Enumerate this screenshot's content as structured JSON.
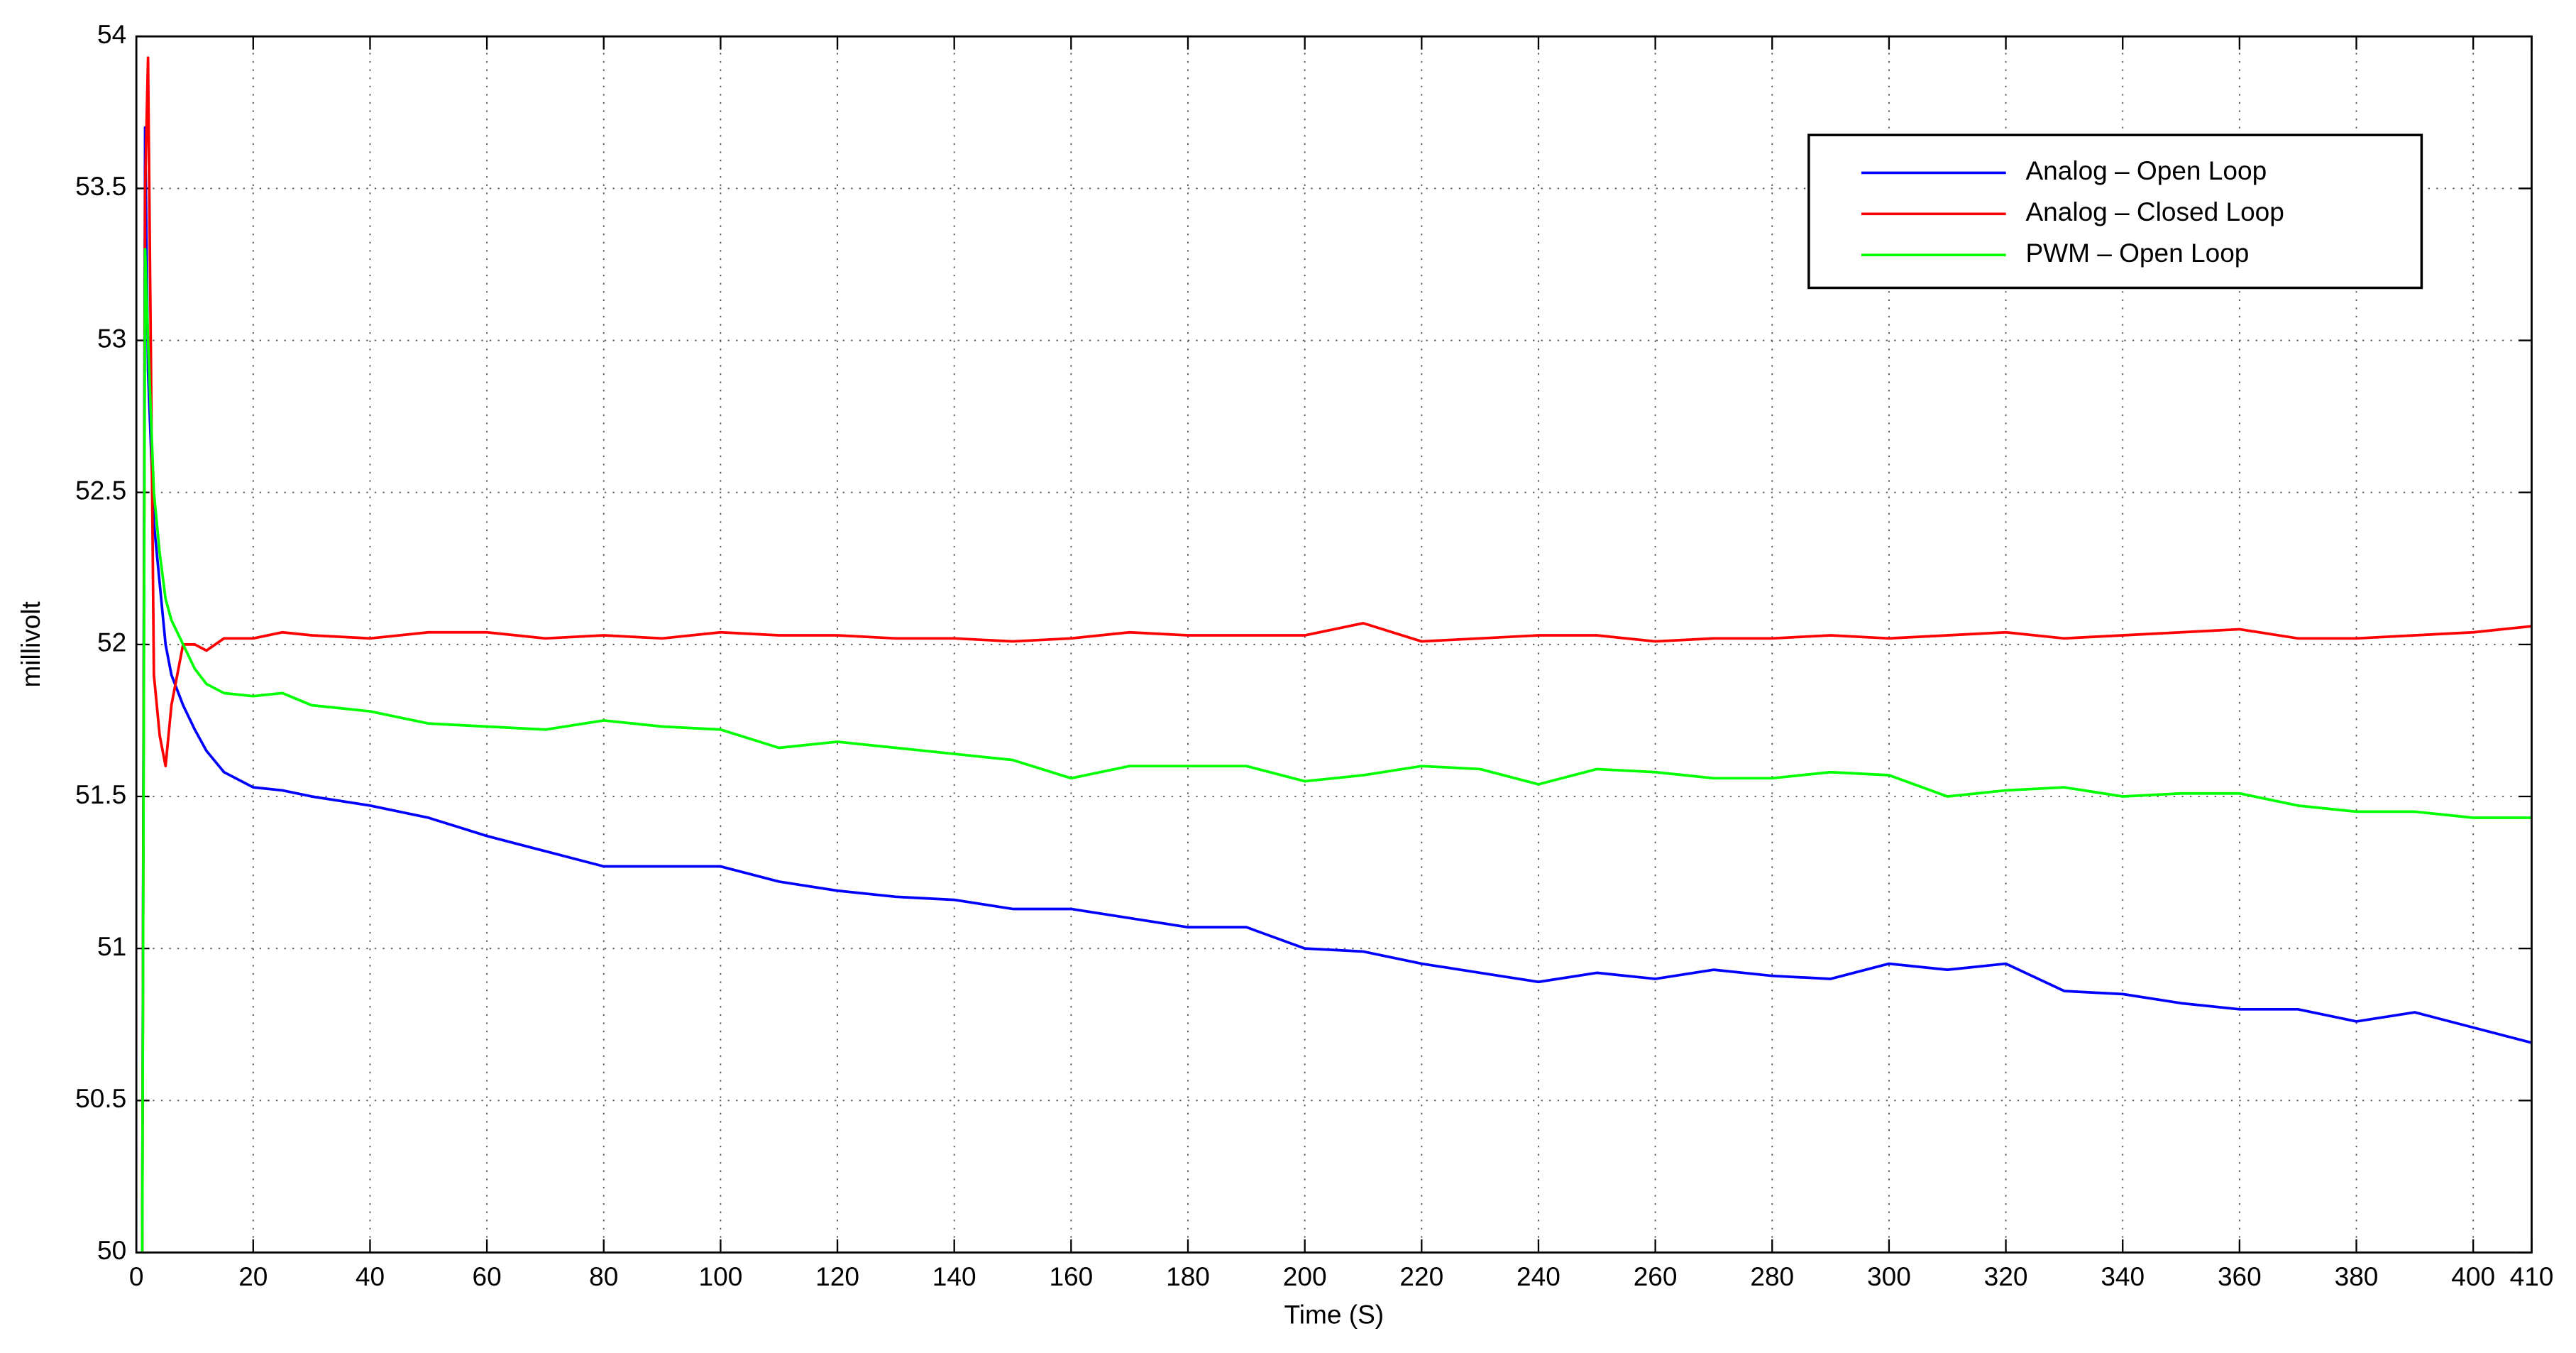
{
  "chart_data": {
    "type": "line",
    "x_label": "Time (S)",
    "y_label": "millivolt",
    "x": [
      1,
      1.5,
      2,
      3,
      4,
      5,
      6,
      8,
      10,
      12,
      15,
      20,
      25,
      30,
      40,
      50,
      60,
      70,
      80,
      90,
      100,
      110,
      120,
      130,
      140,
      150,
      160,
      170,
      180,
      190,
      200,
      210,
      220,
      230,
      240,
      250,
      260,
      270,
      280,
      290,
      300,
      310,
      320,
      330,
      340,
      350,
      360,
      370,
      380,
      390,
      400,
      410
    ],
    "series": [
      {
        "name": "Analog – Open Loop",
        "color": "#0000ff",
        "values": [
          50,
          53.7,
          52.9,
          52.4,
          52.2,
          52.0,
          51.9,
          51.8,
          51.72,
          51.65,
          51.58,
          51.53,
          51.52,
          51.5,
          51.47,
          51.43,
          51.37,
          51.32,
          51.27,
          51.27,
          51.27,
          51.22,
          51.19,
          51.17,
          51.16,
          51.13,
          51.13,
          51.1,
          51.07,
          51.07,
          51.0,
          50.99,
          50.95,
          50.92,
          50.89,
          50.92,
          50.9,
          50.93,
          50.91,
          50.9,
          50.95,
          50.93,
          50.95,
          50.86,
          50.85,
          50.82,
          50.8,
          50.8,
          50.76,
          50.79,
          50.74,
          50.69
        ]
      },
      {
        "name": "Analog – Closed Loop",
        "color": "#ff0000",
        "values": [
          50,
          53.5,
          53.93,
          51.9,
          51.7,
          51.6,
          51.8,
          52.0,
          52.0,
          51.98,
          52.02,
          52.02,
          52.04,
          52.03,
          52.02,
          52.04,
          52.04,
          52.02,
          52.03,
          52.02,
          52.04,
          52.03,
          52.03,
          52.02,
          52.02,
          52.01,
          52.02,
          52.04,
          52.03,
          52.03,
          52.03,
          52.07,
          52.01,
          52.02,
          52.03,
          52.03,
          52.01,
          52.02,
          52.02,
          52.03,
          52.02,
          52.03,
          52.04,
          52.02,
          52.03,
          52.04,
          52.05,
          52.02,
          52.02,
          52.03,
          52.04,
          52.06
        ]
      },
      {
        "name": "PWM – Open Loop",
        "color": "#00ff00",
        "values": [
          50,
          53.3,
          53.0,
          52.5,
          52.3,
          52.15,
          52.08,
          52.0,
          51.92,
          51.87,
          51.84,
          51.83,
          51.84,
          51.8,
          51.78,
          51.74,
          51.73,
          51.72,
          51.75,
          51.73,
          51.72,
          51.66,
          51.68,
          51.66,
          51.64,
          51.62,
          51.56,
          51.6,
          51.6,
          51.6,
          51.55,
          51.57,
          51.6,
          51.59,
          51.54,
          51.59,
          51.58,
          51.56,
          51.56,
          51.58,
          51.57,
          51.5,
          51.52,
          51.53,
          51.5,
          51.51,
          51.51,
          51.47,
          51.45,
          51.45,
          51.43,
          51.43
        ]
      }
    ],
    "xlim": [
      0,
      410
    ],
    "xticks": [
      0,
      20,
      40,
      60,
      80,
      100,
      120,
      140,
      160,
      180,
      200,
      220,
      240,
      260,
      280,
      300,
      320,
      340,
      360,
      380,
      400,
      410
    ],
    "ylim": [
      50,
      54
    ],
    "yticks": [
      50,
      50.5,
      51,
      51.5,
      52,
      52.5,
      53,
      53.5,
      54
    ],
    "grid": true,
    "legend": "upper right"
  }
}
